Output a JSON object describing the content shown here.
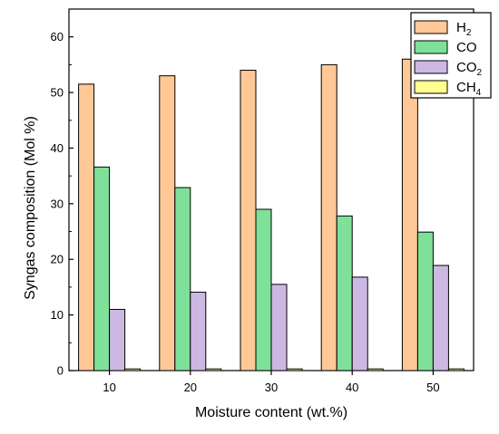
{
  "chart_data": {
    "type": "bar",
    "xlabel": "Moisture content (wt.%)",
    "ylabel": "Syngas composition (Mol %)",
    "ylim": [
      0,
      65
    ],
    "yticks": [
      0,
      10,
      20,
      30,
      40,
      50,
      60
    ],
    "categories": [
      "10",
      "20",
      "30",
      "40",
      "50"
    ],
    "series": [
      {
        "name": "H",
        "sub": "2",
        "color": "#FFC896",
        "values": [
          51.5,
          53,
          54,
          55,
          56
        ]
      },
      {
        "name": "CO",
        "sub": "",
        "color": "#7FE09A",
        "values": [
          36.6,
          32.9,
          29,
          27.8,
          24.9
        ]
      },
      {
        "name": "CO",
        "sub": "2",
        "color": "#CDB8E4",
        "values": [
          11,
          14.1,
          15.5,
          16.8,
          18.9
        ]
      },
      {
        "name": "CH",
        "sub": "4",
        "color": "#FFFF8F",
        "values": [
          0.3,
          0.3,
          0.3,
          0.3,
          0.3
        ]
      }
    ],
    "legend_position": "top-right",
    "grid": false
  }
}
